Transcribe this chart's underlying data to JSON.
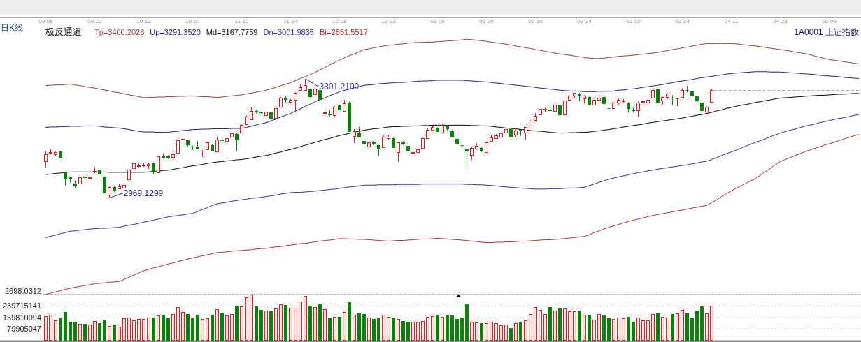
{
  "chart_data": [
    {
      "type": "candlestick",
      "title": "1A0001 上证指数",
      "subtitle": "日K线",
      "legend_title": "极反通道",
      "legend": "top left",
      "tick_labels": "x",
      "categories": [
        "09-06",
        null,
        null,
        null,
        null,
        null,
        null,
        null,
        null,
        null,
        "09-22",
        null,
        null,
        null,
        null,
        null,
        null,
        null,
        null,
        null,
        "10-13",
        null,
        null,
        null,
        null,
        null,
        null,
        null,
        null,
        null,
        "10-27",
        null,
        null,
        null,
        null,
        null,
        null,
        null,
        null,
        null,
        "11-10",
        null,
        null,
        null,
        null,
        null,
        null,
        null,
        null,
        null,
        "11-24",
        null,
        null,
        null,
        null,
        null,
        null,
        null,
        null,
        null,
        "12-08",
        null,
        null,
        null,
        null,
        null,
        null,
        null,
        null,
        null,
        "12-22",
        null,
        null,
        null,
        null,
        null,
        null,
        null,
        null,
        null,
        "01-06",
        null,
        null,
        null,
        null,
        null,
        null,
        null,
        null,
        null,
        "01-20",
        null,
        null,
        null,
        null,
        null,
        null,
        null,
        null,
        null,
        "02-10",
        null,
        null,
        null,
        null,
        null,
        null,
        null,
        null,
        null,
        "02-24",
        null,
        null,
        null,
        null,
        null,
        null,
        null,
        null,
        null,
        "03-10",
        null,
        null,
        null,
        null,
        null,
        null,
        null,
        null,
        null,
        "03-24",
        null,
        null,
        null,
        null,
        null,
        null,
        null,
        null,
        null,
        "04-11",
        null,
        null,
        null,
        null,
        null,
        null,
        null,
        null,
        null,
        "04-25",
        null,
        null,
        null,
        null,
        null,
        null,
        null,
        null,
        null,
        "05-09",
        null,
        null,
        null,
        null,
        null,
        null
      ],
      "ohlc": [
        [
          3072,
          3098,
          3055,
          3091
        ],
        [
          3095,
          3105,
          3090,
          3097
        ],
        [
          3091,
          3098,
          3086,
          3096
        ],
        [
          3098,
          3099,
          3080,
          3081
        ],
        [
          3039,
          3040,
          3003,
          3024
        ],
        [
          3026,
          3027,
          3011,
          3024
        ],
        [
          3009,
          3016,
          2996,
          3003
        ],
        [
          3008,
          3028,
          3006,
          3026
        ],
        [
          3028,
          3029,
          3018,
          3026
        ],
        [
          3024,
          3031,
          3018,
          3026
        ],
        [
          3041,
          3055,
          3037,
          3044
        ],
        [
          3045,
          3047,
          3034,
          3035
        ],
        [
          3028,
          3029,
          2982,
          2983
        ],
        [
          2977,
          3000,
          2969.1299,
          2998
        ],
        [
          2999,
          3001,
          2986,
          2990
        ],
        [
          2995,
          3007,
          2994,
          3000
        ],
        [
          2996,
          3007,
          2995,
          3005
        ],
        [
          3021,
          3049,
          3016,
          3047
        ],
        [
          3052,
          3067,
          3050,
          3065
        ],
        [
          3058,
          3065,
          3054,
          3060
        ],
        [
          3059,
          3065,
          3055,
          3061
        ],
        [
          3059,
          3065,
          3050,
          3063
        ],
        [
          3065,
          3067,
          3035,
          3044
        ],
        [
          3039,
          3086,
          3037,
          3084
        ],
        [
          3085,
          3093,
          3078,
          3083
        ],
        [
          3084,
          3088,
          3078,
          3082
        ],
        [
          3082,
          3101,
          3072,
          3091
        ],
        [
          3094,
          3138,
          3093,
          3130
        ],
        [
          3131,
          3134,
          3130,
          3133
        ],
        [
          3130,
          3131,
          3112,
          3118
        ],
        [
          3113,
          3114,
          3103,
          3112
        ],
        [
          3112,
          3127,
          3104,
          3106
        ],
        [
          3100,
          3102,
          3083,
          3101
        ],
        [
          3104,
          3125,
          3102,
          3123
        ],
        [
          3116,
          3118,
          3101,
          3103
        ],
        [
          3098,
          3140,
          3096,
          3131
        ],
        [
          3132,
          3138,
          3122,
          3130
        ],
        [
          3128,
          3137,
          3120,
          3135
        ],
        [
          3140,
          3157,
          3137,
          3150
        ],
        [
          3148,
          3150,
          3099,
          3131
        ],
        [
          3151,
          3174,
          3149,
          3172
        ],
        [
          3174,
          3199,
          3172,
          3197
        ],
        [
          3189,
          3222,
          3187,
          3211
        ],
        [
          3211,
          3215,
          3205,
          3209
        ],
        [
          3209,
          3210,
          3204,
          3208
        ],
        [
          3200,
          3211,
          3192,
          3209
        ],
        [
          3208,
          3210,
          3191,
          3193
        ],
        [
          3192,
          3222,
          3190,
          3220
        ],
        [
          3223,
          3251,
          3221,
          3249
        ],
        [
          3248,
          3253,
          3236,
          3246
        ],
        [
          3238,
          3245,
          3233,
          3243
        ],
        [
          3243,
          3264,
          3210,
          3262
        ],
        [
          3271,
          3288,
          3269,
          3279
        ],
        [
          3271,
          3301.21,
          3269,
          3284
        ],
        [
          3272,
          3274,
          3249,
          3253
        ],
        [
          3259,
          3277,
          3257,
          3275
        ],
        [
          3271,
          3273,
          3236,
          3246
        ],
        [
          3206,
          3220,
          3197,
          3208
        ],
        [
          3204,
          3214,
          3197,
          3203
        ],
        [
          3200,
          3225,
          3193,
          3223
        ],
        [
          3227,
          3229,
          3213,
          3215
        ],
        [
          3212,
          3243,
          3210,
          3234
        ],
        [
          3236,
          3238,
          3153,
          3155
        ],
        [
          3142,
          3161,
          3122,
          3155
        ],
        [
          3150,
          3168,
          3138,
          3140
        ],
        [
          3127,
          3137,
          3106,
          3121
        ],
        [
          3112,
          3125,
          3106,
          3124
        ],
        [
          3123,
          3127,
          3116,
          3122
        ],
        [
          3116,
          3117,
          3086,
          3106
        ],
        [
          3110,
          3143,
          3109,
          3139
        ],
        [
          3135,
          3144,
          3132,
          3140
        ],
        [
          3135,
          3137,
          3108,
          3110
        ],
        [
          3097,
          3125,
          3070,
          3124
        ],
        [
          3123,
          3127,
          3117,
          3122
        ],
        [
          3114,
          3115,
          3096,
          3103
        ],
        [
          3095,
          3103,
          3090,
          3097
        ],
        [
          3097,
          3109,
          3093,
          3104
        ],
        [
          3108,
          3137,
          3106,
          3135
        ],
        [
          3135,
          3164,
          3133,
          3159
        ],
        [
          3160,
          3171,
          3158,
          3167
        ],
        [
          3165,
          3166,
          3154,
          3156
        ],
        [
          3152,
          3175,
          3149,
          3173
        ],
        [
          3169,
          3171,
          3158,
          3163
        ],
        [
          3156,
          3158,
          3137,
          3139
        ],
        [
          3133,
          3143,
          3116,
          3122
        ],
        [
          3117,
          3129,
          3106,
          3116
        ],
        [
          3104,
          3105,
          3045,
          3101
        ],
        [
          3088,
          3111,
          3075,
          3109
        ],
        [
          3106,
          3122,
          3103,
          3114
        ],
        [
          3108,
          3110,
          3097,
          3103
        ],
        [
          3097,
          3125,
          3095,
          3124
        ],
        [
          3127,
          3145,
          3126,
          3137
        ],
        [
          3135,
          3147,
          3134,
          3143
        ],
        [
          3139,
          3151,
          3137,
          3150
        ],
        [
          3152,
          3163,
          3147,
          3161
        ],
        [
          3161,
          3163,
          3137,
          3142
        ],
        [
          3145,
          3160,
          3138,
          3158
        ],
        [
          3159,
          3160,
          3142,
          3157
        ],
        [
          3152,
          3167,
          3132,
          3166
        ],
        [
          3165,
          3186,
          3163,
          3184
        ],
        [
          3186,
          3206,
          3184,
          3199
        ],
        [
          3202,
          3218,
          3200,
          3217
        ],
        [
          3216,
          3221,
          3210,
          3218
        ],
        [
          3215,
          3235,
          3210,
          3214
        ],
        [
          3212,
          3233,
          3208,
          3230
        ],
        [
          3228,
          3229,
          3201,
          3202
        ],
        [
          3202,
          3242,
          3200,
          3241
        ],
        [
          3244,
          3256,
          3242,
          3254
        ],
        [
          3254,
          3263,
          3249,
          3262
        ],
        [
          3259,
          3262,
          3240,
          3257
        ],
        [
          3247,
          3256,
          3234,
          3254
        ],
        [
          3251,
          3252,
          3229,
          3231
        ],
        [
          3230,
          3244,
          3228,
          3243
        ],
        [
          3243,
          3260,
          3240,
          3249
        ],
        [
          3251,
          3253,
          3231,
          3233
        ],
        [
          3220,
          3221,
          3210,
          3219
        ],
        [
          3220,
          3237,
          3218,
          3235
        ],
        [
          3235,
          3246,
          3230,
          3243
        ],
        [
          3240,
          3246,
          3236,
          3241
        ],
        [
          3234,
          3236,
          3208,
          3220
        ],
        [
          3215,
          3221,
          3208,
          3214
        ],
        [
          3214,
          3238,
          3195,
          3236
        ],
        [
          3238,
          3246,
          3233,
          3239
        ],
        [
          3236,
          3244,
          3230,
          3243
        ],
        [
          3249,
          3272,
          3248,
          3271
        ],
        [
          3272,
          3274,
          3234,
          3238
        ],
        [
          3242,
          3252,
          3230,
          3251
        ],
        [
          3251,
          3262,
          3246,
          3261
        ],
        [
          3250,
          3256,
          3228,
          3249
        ],
        [
          3247,
          3248,
          3225,
          3248
        ],
        [
          3251,
          3275,
          3250,
          3271
        ],
        [
          3271,
          3282,
          3264,
          3270
        ],
        [
          3267,
          3268,
          3253,
          3254
        ],
        [
          3253,
          3254,
          3235,
          3241
        ],
        [
          3236,
          3238,
          3199,
          3214
        ],
        [
          3209,
          3225,
          3207,
          3223
        ],
        [
          3238,
          3272,
          3236,
          3271
        ],
        null,
        null,
        null,
        null,
        null,
        null,
        null,
        null,
        null,
        null,
        null,
        null,
        null,
        null,
        null,
        null,
        null,
        null,
        null,
        null,
        null,
        null,
        null,
        null,
        null,
        null,
        null,
        null,
        null,
        null
      ],
      "colors": [
        "#d42020",
        "#d42020",
        "#d42020",
        "#0a800a",
        "#0a800a",
        "#0a800a",
        "#0a800a",
        "#d42020",
        "#0a800a",
        "#d42020",
        "#d42020",
        "#0a800a",
        "#0a800a",
        "#d42020",
        "#0a800a",
        "#d42020",
        "#d42020",
        "#d42020",
        "#d42020",
        "#d42020",
        "#d42020",
        "#d42020",
        "#0a800a",
        "#d42020",
        "#0a800a",
        "#0a800a",
        "#d42020",
        "#d42020",
        "#d42020",
        "#0a800a",
        "#0a800a",
        "#0a800a",
        "#d42020",
        "#d42020",
        "#0a800a",
        "#d42020",
        "#0a800a",
        "#d42020",
        "#d42020",
        "#0a800a",
        "#d42020",
        "#d42020",
        "#d42020",
        "#0a800a",
        "#0a800a",
        "#d42020",
        "#0a800a",
        "#d42020",
        "#d42020",
        "#0a800a",
        "#d42020",
        "#d42020",
        "#d42020",
        "#d42020",
        "#0a800a",
        "#d42020",
        "#0a800a",
        "#d42020",
        "#0a800a",
        "#d42020",
        "#0a800a",
        "#d42020",
        "#0a800a",
        "#d42020",
        "#0a800a",
        "#0a800a",
        "#d42020",
        "#0a800a",
        "#0a800a",
        "#d42020",
        "#d42020",
        "#0a800a",
        "#d42020",
        "#0a800a",
        "#0a800a",
        "#d42020",
        "#d42020",
        "#d42020",
        "#d42020",
        "#d42020",
        "#0a800a",
        "#d42020",
        "#0a800a",
        "#0a800a",
        "#0a800a",
        "#0a800a",
        "#0a800a",
        "#d42020",
        "#d42020",
        "#0a800a",
        "#d42020",
        "#d42020",
        "#d42020",
        "#d42020",
        "#d42020",
        "#0a800a",
        "#d42020",
        "#0a800a",
        "#d42020",
        "#d42020",
        "#d42020",
        "#d42020",
        "#d42020",
        "#0a800a",
        "#d42020",
        "#0a800a",
        "#d42020",
        "#d42020",
        "#d42020",
        "#0a800a",
        "#d42020",
        "#0a800a",
        "#d42020",
        "#d42020",
        "#0a800a",
        "#0a800a",
        "#d42020",
        "#d42020",
        "#d42020",
        "#0a800a",
        "#0a800a",
        "#d42020",
        "#d42020",
        "#d42020",
        "#d42020",
        "#0a800a",
        "#d42020",
        "#d42020",
        "#0a800a",
        "#d42020",
        "#d42020",
        "#0a800a",
        "#0a800a",
        "#0a800a",
        "#0a800a",
        "#d42020",
        "#d42020",
        null,
        null,
        null,
        null,
        null,
        null,
        null,
        null,
        null,
        null,
        null,
        null,
        null,
        null,
        null,
        null,
        null,
        null,
        null,
        null,
        null,
        null,
        null,
        null,
        null,
        null,
        null,
        null,
        null,
        null
      ],
      "series": [
        {
          "name": "Tp=3400.2028",
          "color": "#983a3a",
          "type": "line",
          "values": [
            3283,
            3284,
            3285,
            3285,
            3286,
            3287,
            3285,
            3283,
            3280,
            3278,
            3276,
            3273,
            3271,
            3268,
            3265,
            3263,
            3260,
            3257,
            3255,
            3252,
            3249,
            3250,
            3250,
            3251,
            3251,
            3252,
            3252,
            3253,
            3253,
            3254,
            3254,
            3253,
            3252,
            3252,
            3251,
            3250,
            3251,
            3253,
            3254,
            3256,
            3257,
            3260,
            3262,
            3265,
            3267,
            3270,
            3274,
            3278,
            3283,
            3287,
            3291,
            3297,
            3303,
            3308,
            3314,
            3320,
            3327,
            3334,
            3341,
            3348,
            3355,
            3361,
            3367,
            3372,
            3378,
            3384,
            3386,
            3389,
            3391,
            3394,
            3396,
            3397,
            3399,
            3400,
            3402,
            3403,
            3404,
            3404,
            3405,
            3405,
            3406,
            3407,
            3408,
            3409,
            3410,
            3411,
            3413,
            3412,
            3410,
            3409,
            3407,
            3405,
            3403,
            3401,
            3399,
            3397,
            3394,
            3392,
            3389,
            3387,
            3384,
            3382,
            3379,
            3377,
            3374,
            3372,
            3370,
            3368,
            3366,
            3364,
            3362,
            3360,
            3359,
            3359,
            3360,
            3362,
            3363,
            3365,
            3366,
            3367,
            3368,
            3370,
            3371,
            3373,
            3374,
            3376,
            3379,
            3381,
            3384,
            3386,
            3389,
            3391,
            3394,
            3396,
            3399,
            3401,
            3401,
            3401,
            3401,
            3401,
            3401,
            3400,
            3398,
            3397,
            3395,
            3394,
            3392,
            3390,
            3388,
            3386,
            3384,
            3382,
            3380,
            3377,
            3375,
            3373,
            3370,
            3366,
            3363,
            3359,
            3356,
            3354,
            3352,
            3350,
            3348,
            3346,
            3344
          ]
        },
        {
          "name": "Up=3291.3520",
          "color": "#1c1c7a",
          "type": "line",
          "values": [
            3166,
            3167,
            3167,
            3168,
            3168,
            3169,
            3169,
            3169,
            3170,
            3170,
            3170,
            3169,
            3167,
            3166,
            3165,
            3164,
            3162,
            3160,
            3157,
            3155,
            3153,
            3153,
            3153,
            3152,
            3152,
            3152,
            3154,
            3155,
            3157,
            3158,
            3160,
            3160,
            3161,
            3161,
            3162,
            3162,
            3162,
            3162,
            3163,
            3163,
            3163,
            3166,
            3169,
            3173,
            3176,
            3179,
            3184,
            3189,
            3195,
            3200,
            3205,
            3212,
            3218,
            3225,
            3231,
            3238,
            3244,
            3249,
            3255,
            3260,
            3266,
            3270,
            3273,
            3277,
            3280,
            3284,
            3285,
            3286,
            3288,
            3289,
            3290,
            3291,
            3292,
            3292,
            3293,
            3294,
            3295,
            3296,
            3296,
            3297,
            3298,
            3298,
            3298,
            3298,
            3298,
            3298,
            3297,
            3296,
            3295,
            3294,
            3293,
            3292,
            3290,
            3289,
            3287,
            3286,
            3284,
            3283,
            3281,
            3280,
            3278,
            3276,
            3275,
            3273,
            3272,
            3270,
            3269,
            3268,
            3268,
            3267,
            3266,
            3266,
            3266,
            3267,
            3267,
            3267,
            3268,
            3270,
            3271,
            3273,
            3274,
            3276,
            3278,
            3280,
            3282,
            3284,
            3286,
            3289,
            3291,
            3294,
            3296,
            3298,
            3300,
            3303,
            3305,
            3307,
            3309,
            3311,
            3313,
            3315,
            3317,
            3318,
            3319,
            3320,
            3321,
            3322,
            3322,
            3322,
            3321,
            3321,
            3321,
            3320,
            3319,
            3318,
            3317,
            3316,
            3315,
            3314,
            3312,
            3311,
            3310,
            3309,
            3308,
            3306,
            3305,
            3304,
            3303
          ]
        },
        {
          "name": "Md=3167.7759",
          "color": "#000000",
          "type": "line",
          "values": [
            3034,
            3035,
            3037,
            3038,
            3040,
            3041,
            3041,
            3041,
            3041,
            3041,
            3041,
            3041,
            3041,
            3040,
            3040,
            3040,
            3040,
            3040,
            3040,
            3040,
            3040,
            3041,
            3043,
            3044,
            3045,
            3046,
            3048,
            3051,
            3053,
            3056,
            3058,
            3060,
            3062,
            3065,
            3067,
            3069,
            3070,
            3072,
            3073,
            3075,
            3076,
            3078,
            3080,
            3083,
            3085,
            3087,
            3090,
            3094,
            3097,
            3101,
            3104,
            3108,
            3112,
            3116,
            3120,
            3124,
            3128,
            3132,
            3135,
            3139,
            3143,
            3146,
            3149,
            3152,
            3155,
            3158,
            3160,
            3162,
            3163,
            3165,
            3167,
            3168,
            3168,
            3169,
            3169,
            3170,
            3170,
            3171,
            3171,
            3172,
            3172,
            3172,
            3172,
            3172,
            3172,
            3172,
            3172,
            3171,
            3171,
            3170,
            3170,
            3169,
            3167,
            3166,
            3164,
            3163,
            3162,
            3160,
            3159,
            3157,
            3156,
            3155,
            3154,
            3152,
            3151,
            3150,
            3150,
            3151,
            3151,
            3152,
            3152,
            3153,
            3155,
            3156,
            3158,
            3160,
            3162,
            3164,
            3167,
            3169,
            3171,
            3173,
            3175,
            3178,
            3180,
            3182,
            3184,
            3186,
            3188,
            3190,
            3192,
            3195,
            3197,
            3200,
            3202,
            3205,
            3208,
            3212,
            3215,
            3219,
            3222,
            3225,
            3228,
            3230,
            3233,
            3236,
            3238,
            3241,
            3243,
            3246,
            3248,
            3249,
            3250,
            3251,
            3252,
            3253,
            3254,
            3255,
            3256,
            3256,
            3257,
            3258,
            3259,
            3259,
            3260,
            3261,
            3261
          ]
        },
        {
          "name": "Dn=3001.9835",
          "color": "#2e2e9e",
          "type": "line",
          "values": [
            2857,
            2861,
            2864,
            2868,
            2871,
            2875,
            2876,
            2878,
            2879,
            2881,
            2882,
            2883,
            2883,
            2884,
            2885,
            2886,
            2889,
            2892,
            2894,
            2897,
            2900,
            2903,
            2906,
            2909,
            2912,
            2915,
            2917,
            2919,
            2921,
            2923,
            2925,
            2930,
            2936,
            2941,
            2947,
            2952,
            2954,
            2956,
            2959,
            2961,
            2963,
            2965,
            2967,
            2968,
            2970,
            2972,
            2974,
            2976,
            2979,
            2981,
            2983,
            2984,
            2984,
            2985,
            2986,
            2987,
            2989,
            2990,
            2992,
            2993,
            2995,
            2997,
            2999,
            3000,
            3002,
            3004,
            3004,
            3004,
            3005,
            3005,
            3005,
            3005,
            3006,
            3006,
            3006,
            3006,
            3006,
            3007,
            3007,
            3007,
            3007,
            3007,
            3007,
            3007,
            3007,
            3007,
            3006,
            3006,
            3005,
            3005,
            3004,
            3003,
            3002,
            3000,
            2999,
            2998,
            2997,
            2996,
            2995,
            2994,
            2993,
            2993,
            2993,
            2994,
            2994,
            2994,
            2995,
            2996,
            2996,
            2997,
            2998,
            3003,
            3007,
            3012,
            3016,
            3021,
            3024,
            3027,
            3030,
            3033,
            3036,
            3039,
            3041,
            3044,
            3046,
            3049,
            3051,
            3053,
            3055,
            3057,
            3059,
            3061,
            3064,
            3066,
            3069,
            3071,
            3076,
            3081,
            3087,
            3092,
            3097,
            3102,
            3108,
            3113,
            3119,
            3124,
            3129,
            3134,
            3140,
            3145,
            3150,
            3154,
            3158,
            3161,
            3165,
            3169,
            3172,
            3175,
            3179,
            3182,
            3185,
            3188,
            3191,
            3193,
            3196,
            3199,
            3202
          ]
        },
        {
          "name": "Bt=2851.5517",
          "color": "#b42a2a",
          "type": "line",
          "values": [
            2698.0312,
            2701,
            2705,
            2708,
            2712,
            2715,
            2718,
            2720,
            2723,
            2725,
            2728,
            2729,
            2730,
            2732,
            2733,
            2734,
            2740,
            2746,
            2752,
            2758,
            2764,
            2768,
            2772,
            2775,
            2779,
            2783,
            2786,
            2790,
            2793,
            2797,
            2800,
            2803,
            2806,
            2809,
            2812,
            2815,
            2816,
            2817,
            2819,
            2820,
            2821,
            2822,
            2823,
            2825,
            2826,
            2827,
            2829,
            2831,
            2832,
            2834,
            2836,
            2838,
            2840,
            2841,
            2843,
            2845,
            2847,
            2849,
            2850,
            2852,
            2854,
            2854,
            2853,
            2853,
            2852,
            2852,
            2851,
            2850,
            2849,
            2848,
            2847,
            2848,
            2849,
            2849,
            2850,
            2851,
            2852,
            2853,
            2853,
            2854,
            2855,
            2854,
            2853,
            2852,
            2851,
            2850,
            2849,
            2847,
            2846,
            2844,
            2843,
            2843,
            2844,
            2844,
            2845,
            2845,
            2846,
            2847,
            2847,
            2848,
            2849,
            2850,
            2851,
            2851,
            2852,
            2853,
            2854,
            2856,
            2857,
            2859,
            2860,
            2865,
            2871,
            2876,
            2881,
            2886,
            2890,
            2894,
            2898,
            2902,
            2906,
            2909,
            2912,
            2916,
            2919,
            2922,
            2924,
            2927,
            2929,
            2932,
            2934,
            2937,
            2940,
            2942,
            2945,
            2947,
            2955,
            2963,
            2972,
            2980,
            2988,
            2995,
            3002,
            3009,
            3016,
            3023,
            3032,
            3042,
            3051,
            3061,
            3070,
            3076,
            3081,
            3087,
            3092,
            3098,
            3102,
            3107,
            3111,
            3116,
            3120,
            3124,
            3129,
            3133,
            3138,
            3142,
            3146
          ]
        }
      ],
      "annotations": [
        "2698.0312",
        "3301.2100",
        "2969.1299"
      ],
      "ref_lines": [
        {
          "axis": "y",
          "value": 3271,
          "color": "#a0a0a0",
          "line_style": "dashed"
        }
      ]
    },
    {
      "type": "bar",
      "tick_labels": "y",
      "values": [
        168000000,
        179000000,
        140000000,
        155000000,
        199000000,
        131000000,
        131000000,
        115000000,
        115000000,
        111000000,
        136000000,
        120000000,
        140000000,
        100000000,
        111000000,
        95000000,
        155000000,
        160000000,
        140000000,
        149000000,
        149000000,
        160000000,
        160000000,
        173000000,
        179000000,
        155000000,
        184000000,
        233000000,
        197000000,
        184000000,
        155000000,
        173000000,
        147000000,
        155000000,
        179000000,
        216000000,
        195000000,
        173000000,
        184000000,
        234000000,
        237000000,
        300000000,
        319000000,
        234000000,
        213000000,
        208000000,
        203000000,
        221000000,
        252000000,
        244000000,
        228000000,
        228000000,
        270000000,
        308000000,
        237000000,
        233000000,
        252000000,
        216000000,
        155000000,
        163000000,
        163000000,
        199000000,
        265000000,
        179000000,
        195000000,
        184000000,
        157000000,
        149000000,
        155000000,
        179000000,
        163000000,
        157000000,
        149000000,
        136000000,
        131000000,
        128000000,
        128000000,
        136000000,
        163000000,
        168000000,
        179000000,
        163000000,
        174000000,
        174000000,
        147000000,
        152000000,
        252000000,
        131000000,
        124000000,
        120000000,
        120000000,
        128000000,
        120000000,
        107000000,
        111000000,
        87000000,
        120000000,
        124000000,
        140000000,
        184000000,
        233000000,
        212000000,
        184000000,
        233000000,
        208000000,
        220000000,
        221000000,
        203000000,
        203000000,
        203000000,
        179000000,
        179000000,
        144000000,
        184000000,
        173000000,
        152000000,
        149000000,
        157000000,
        155000000,
        163000000,
        131000000,
        157000000,
        140000000,
        140000000,
        184000000,
        195000000,
        163000000,
        160000000,
        184000000,
        189000000,
        212000000,
        195000000,
        155000000,
        208000000,
        237000000,
        189000000,
        241000000,
        null,
        null,
        null,
        null,
        null,
        null,
        null,
        null,
        null,
        null,
        null,
        null,
        null,
        null,
        null,
        null,
        null,
        null,
        null,
        null,
        null,
        null,
        null,
        null,
        null,
        null,
        null,
        null,
        null,
        null
      ],
      "colors": [
        "#d42020",
        "#d42020",
        "#d42020",
        "#0a800a",
        "#0a800a",
        "#0a800a",
        "#0a800a",
        "#d42020",
        "#0a800a",
        "#d42020",
        "#d42020",
        "#0a800a",
        "#0a800a",
        "#d42020",
        "#0a800a",
        "#d42020",
        "#d42020",
        "#d42020",
        "#d42020",
        "#d42020",
        "#d42020",
        "#d42020",
        "#0a800a",
        "#d42020",
        "#0a800a",
        "#0a800a",
        "#d42020",
        "#d42020",
        "#d42020",
        "#0a800a",
        "#0a800a",
        "#0a800a",
        "#d42020",
        "#d42020",
        "#0a800a",
        "#d42020",
        "#0a800a",
        "#d42020",
        "#d42020",
        "#0a800a",
        "#d42020",
        "#d42020",
        "#d42020",
        "#0a800a",
        "#0a800a",
        "#d42020",
        "#0a800a",
        "#d42020",
        "#d42020",
        "#0a800a",
        "#d42020",
        "#d42020",
        "#d42020",
        "#d42020",
        "#0a800a",
        "#d42020",
        "#0a800a",
        "#d42020",
        "#0a800a",
        "#d42020",
        "#0a800a",
        "#d42020",
        "#0a800a",
        "#d42020",
        "#0a800a",
        "#0a800a",
        "#d42020",
        "#0a800a",
        "#0a800a",
        "#d42020",
        "#d42020",
        "#0a800a",
        "#d42020",
        "#0a800a",
        "#0a800a",
        "#d42020",
        "#d42020",
        "#d42020",
        "#d42020",
        "#d42020",
        "#0a800a",
        "#d42020",
        "#0a800a",
        "#0a800a",
        "#0a800a",
        "#0a800a",
        "#0a800a",
        "#d42020",
        "#d42020",
        "#0a800a",
        "#d42020",
        "#d42020",
        "#d42020",
        "#d42020",
        "#d42020",
        "#0a800a",
        "#d42020",
        "#0a800a",
        "#d42020",
        "#d42020",
        "#d42020",
        "#d42020",
        "#d42020",
        "#0a800a",
        "#d42020",
        "#0a800a",
        "#d42020",
        "#d42020",
        "#d42020",
        "#0a800a",
        "#d42020",
        "#0a800a",
        "#d42020",
        "#d42020",
        "#0a800a",
        "#0a800a",
        "#d42020",
        "#d42020",
        "#d42020",
        "#0a800a",
        "#0a800a",
        "#d42020",
        "#d42020",
        "#d42020",
        "#d42020",
        "#0a800a",
        "#d42020",
        "#d42020",
        "#0a800a",
        "#d42020",
        "#d42020",
        "#0a800a",
        "#0a800a",
        "#0a800a",
        "#0a800a",
        "#d42020",
        "#d42020",
        null,
        null,
        null,
        null,
        null,
        null,
        null,
        null,
        null,
        null,
        null,
        null,
        null,
        null,
        null,
        null,
        null,
        null,
        null,
        null,
        null,
        null,
        null,
        null,
        null,
        null,
        null,
        null,
        null,
        null
      ],
      "ylim": [
        0,
        319620188
      ],
      "yticks": [
        79905047,
        159810094,
        239715141
      ],
      "grid": "y"
    }
  ]
}
